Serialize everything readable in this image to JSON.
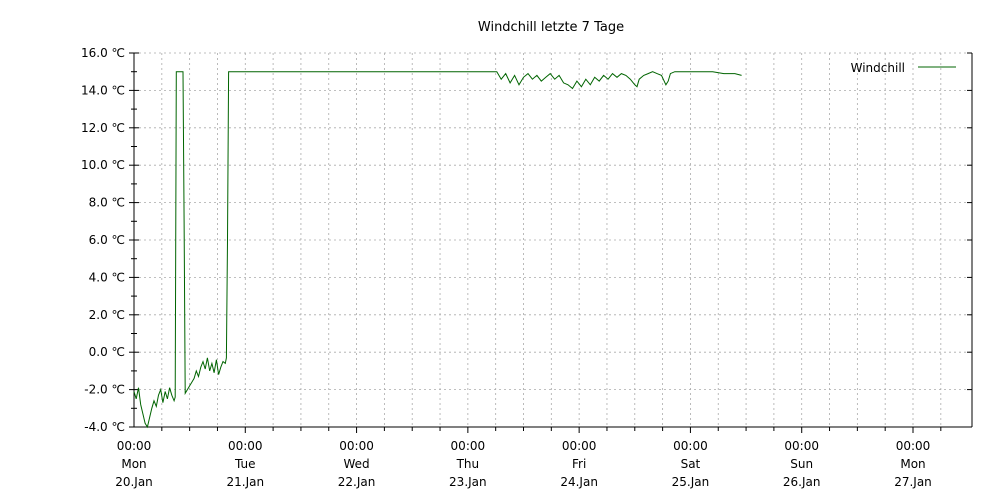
{
  "chart_data": {
    "type": "line",
    "title": "Windchill letzte 7 Tage",
    "xlabel": "",
    "ylabel": "",
    "ylim": [
      -4.0,
      16.0
    ],
    "y_ticks": [
      {
        "value": 16.0,
        "label": "16.0 ℃"
      },
      {
        "value": 14.0,
        "label": "14.0 ℃"
      },
      {
        "value": 12.0,
        "label": "12.0 ℃"
      },
      {
        "value": 10.0,
        "label": "10.0 ℃"
      },
      {
        "value": 8.0,
        "label": "8.0 ℃"
      },
      {
        "value": 6.0,
        "label": "6.0 ℃"
      },
      {
        "value": 4.0,
        "label": "4.0 ℃"
      },
      {
        "value": 2.0,
        "label": "2.0 ℃"
      },
      {
        "value": 0.0,
        "label": "0.0 ℃"
      },
      {
        "value": -2.0,
        "label": "-2.0 ℃"
      },
      {
        "value": -4.0,
        "label": "-4.0 ℃"
      }
    ],
    "x_ticks": [
      {
        "day": 0,
        "time": "00:00",
        "weekday": "Mon",
        "date": "20.Jan"
      },
      {
        "day": 1,
        "time": "00:00",
        "weekday": "Tue",
        "date": "21.Jan"
      },
      {
        "day": 2,
        "time": "00:00",
        "weekday": "Wed",
        "date": "22.Jan"
      },
      {
        "day": 3,
        "time": "00:00",
        "weekday": "Thu",
        "date": "23.Jan"
      },
      {
        "day": 4,
        "time": "00:00",
        "weekday": "Fri",
        "date": "24.Jan"
      },
      {
        "day": 5,
        "time": "00:00",
        "weekday": "Sat",
        "date": "25.Jan"
      },
      {
        "day": 6,
        "time": "00:00",
        "weekday": "Sun",
        "date": "26.Jan"
      },
      {
        "day": 7,
        "time": "00:00",
        "weekday": "Mon",
        "date": "27.Jan"
      }
    ],
    "x_range_days": [
      0,
      7.3
    ],
    "grid": true,
    "legend": "top-right",
    "series": [
      {
        "name": "Windchill",
        "color": "#006400",
        "points": [
          [
            0.0,
            -2.1
          ],
          [
            0.02,
            -2.5
          ],
          [
            0.04,
            -1.9
          ],
          [
            0.06,
            -2.8
          ],
          [
            0.08,
            -3.3
          ],
          [
            0.1,
            -3.8
          ],
          [
            0.12,
            -4.0
          ],
          [
            0.14,
            -3.5
          ],
          [
            0.16,
            -3.0
          ],
          [
            0.18,
            -2.6
          ],
          [
            0.2,
            -2.9
          ],
          [
            0.22,
            -2.3
          ],
          [
            0.24,
            -2.0
          ],
          [
            0.26,
            -2.7
          ],
          [
            0.28,
            -2.1
          ],
          [
            0.3,
            -2.5
          ],
          [
            0.32,
            -1.9
          ],
          [
            0.34,
            -2.3
          ],
          [
            0.36,
            -2.6
          ],
          [
            0.37,
            -2.4
          ],
          [
            0.38,
            15.0
          ],
          [
            0.44,
            15.0
          ],
          [
            0.45,
            7.0
          ],
          [
            0.46,
            -2.2
          ],
          [
            0.48,
            -2.0
          ],
          [
            0.5,
            -1.8
          ],
          [
            0.52,
            -1.6
          ],
          [
            0.54,
            -1.4
          ],
          [
            0.56,
            -1.0
          ],
          [
            0.58,
            -1.3
          ],
          [
            0.6,
            -0.8
          ],
          [
            0.62,
            -0.5
          ],
          [
            0.64,
            -0.9
          ],
          [
            0.66,
            -0.3
          ],
          [
            0.68,
            -1.0
          ],
          [
            0.7,
            -0.6
          ],
          [
            0.72,
            -1.1
          ],
          [
            0.74,
            -0.4
          ],
          [
            0.76,
            -1.2
          ],
          [
            0.78,
            -0.8
          ],
          [
            0.8,
            -0.5
          ],
          [
            0.82,
            -0.6
          ],
          [
            0.83,
            -0.3
          ],
          [
            0.84,
            6.0
          ],
          [
            0.85,
            15.0
          ],
          [
            1.0,
            15.0
          ],
          [
            1.5,
            15.0
          ],
          [
            2.0,
            15.0
          ],
          [
            2.5,
            15.0
          ],
          [
            3.0,
            15.0
          ],
          [
            3.26,
            15.0
          ],
          [
            3.3,
            14.6
          ],
          [
            3.34,
            14.9
          ],
          [
            3.38,
            14.4
          ],
          [
            3.42,
            14.8
          ],
          [
            3.46,
            14.3
          ],
          [
            3.5,
            14.7
          ],
          [
            3.54,
            14.9
          ],
          [
            3.58,
            14.6
          ],
          [
            3.62,
            14.8
          ],
          [
            3.66,
            14.5
          ],
          [
            3.7,
            14.7
          ],
          [
            3.74,
            14.9
          ],
          [
            3.78,
            14.6
          ],
          [
            3.82,
            14.8
          ],
          [
            3.86,
            14.4
          ],
          [
            3.9,
            14.3
          ],
          [
            3.94,
            14.1
          ],
          [
            3.98,
            14.5
          ],
          [
            4.02,
            14.2
          ],
          [
            4.06,
            14.6
          ],
          [
            4.1,
            14.3
          ],
          [
            4.14,
            14.7
          ],
          [
            4.18,
            14.5
          ],
          [
            4.22,
            14.8
          ],
          [
            4.26,
            14.6
          ],
          [
            4.3,
            14.9
          ],
          [
            4.34,
            14.7
          ],
          [
            4.38,
            14.9
          ],
          [
            4.42,
            14.8
          ],
          [
            4.46,
            14.6
          ],
          [
            4.5,
            14.3
          ],
          [
            4.52,
            14.2
          ],
          [
            4.54,
            14.6
          ],
          [
            4.58,
            14.8
          ],
          [
            4.62,
            14.9
          ],
          [
            4.66,
            15.0
          ],
          [
            4.7,
            14.9
          ],
          [
            4.74,
            14.8
          ],
          [
            4.78,
            14.3
          ],
          [
            4.8,
            14.5
          ],
          [
            4.82,
            14.9
          ],
          [
            4.86,
            15.0
          ],
          [
            5.0,
            15.0
          ],
          [
            5.2,
            15.0
          ],
          [
            5.3,
            14.9
          ],
          [
            5.4,
            14.9
          ],
          [
            5.46,
            14.8
          ]
        ]
      }
    ]
  }
}
